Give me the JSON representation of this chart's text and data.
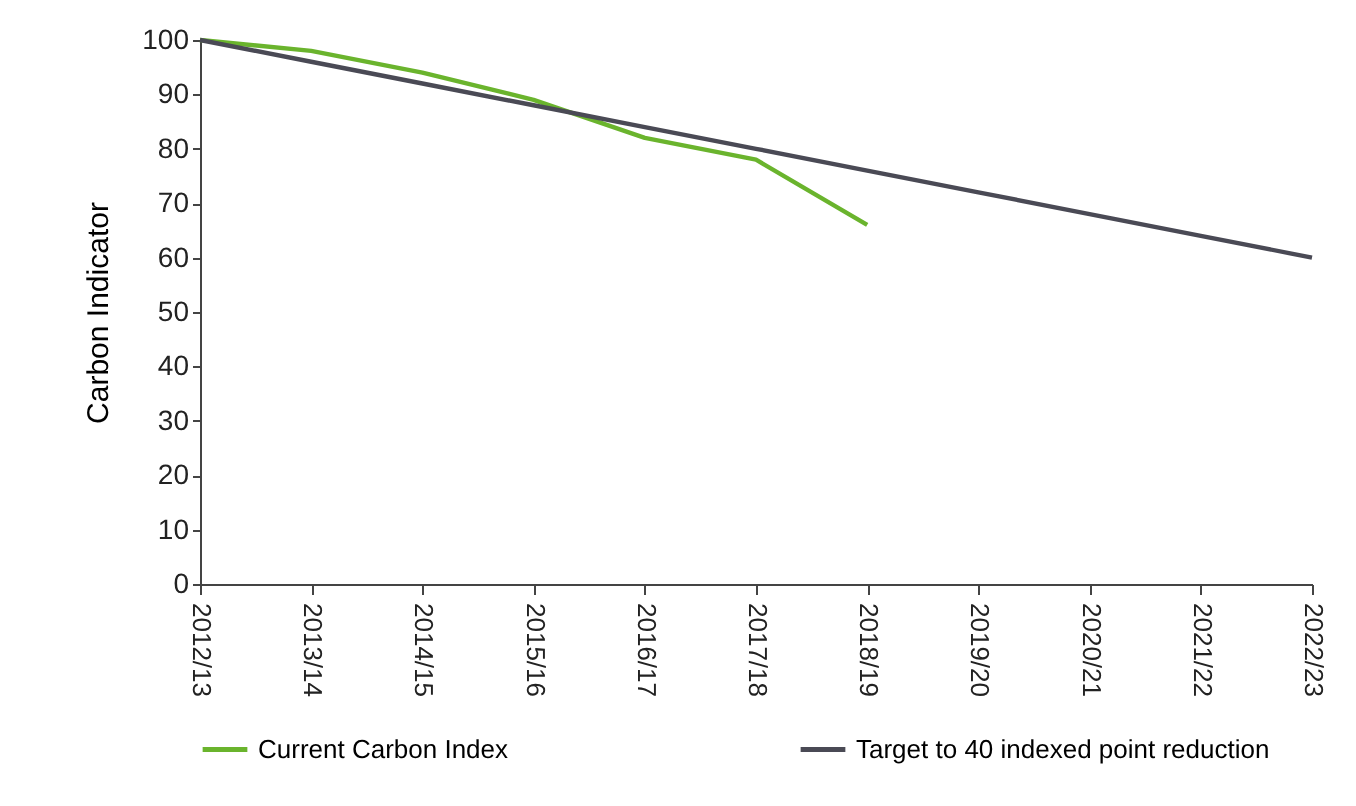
{
  "chart_data": {
    "type": "line",
    "ylabel": "Carbon Indicator",
    "categories": [
      "2012/13",
      "2013/14",
      "2014/15",
      "2015/16",
      "2016/17",
      "2017/18",
      "2018/19",
      "2019/20",
      "2020/21",
      "2021/22",
      "2022/23"
    ],
    "series": [
      {
        "name": "Current Carbon Index",
        "color": "#6ab42d",
        "values": [
          100,
          98,
          94,
          89,
          82,
          78,
          66,
          null,
          null,
          null,
          null
        ]
      },
      {
        "name": "Target to 40 indexed point reduction",
        "color": "#4a4a55",
        "values": [
          100,
          96,
          92,
          88,
          84,
          80,
          76,
          72,
          68,
          64,
          60
        ]
      }
    ],
    "ylim": [
      0,
      100
    ],
    "yticks": [
      0,
      10,
      20,
      30,
      40,
      50,
      60,
      70,
      80,
      90,
      100
    ],
    "grid": false,
    "legend": "bottom",
    "marker": "none",
    "line_style": "solid"
  }
}
